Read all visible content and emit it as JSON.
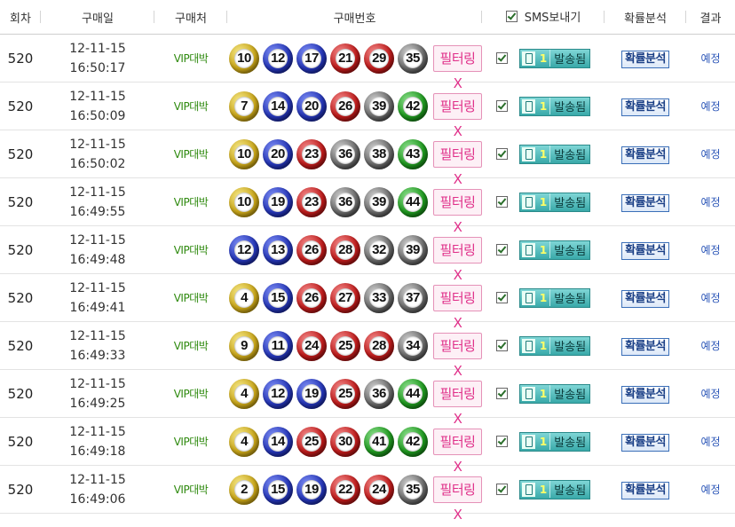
{
  "header": {
    "round": "회차",
    "date": "구매일",
    "store": "구매처",
    "numbers": "구매번호",
    "sms": "SMS보내기",
    "analysis": "확률분석",
    "result": "결과"
  },
  "labels": {
    "filter": "필터링X",
    "sms_count": "1",
    "sms_status": "발송됨",
    "analysis_btn": "확률분석"
  },
  "rows": [
    {
      "round": "520",
      "date": "12-11-15",
      "time": "16:50:17",
      "store": "VIP대박",
      "numbers": [
        {
          "v": "10",
          "c": "yellow"
        },
        {
          "v": "12",
          "c": "blue"
        },
        {
          "v": "17",
          "c": "blue"
        },
        {
          "v": "21",
          "c": "red"
        },
        {
          "v": "29",
          "c": "red"
        },
        {
          "v": "35",
          "c": "gray"
        }
      ],
      "result": "예정"
    },
    {
      "round": "520",
      "date": "12-11-15",
      "time": "16:50:09",
      "store": "VIP대박",
      "numbers": [
        {
          "v": "7",
          "c": "yellow"
        },
        {
          "v": "14",
          "c": "blue"
        },
        {
          "v": "20",
          "c": "blue"
        },
        {
          "v": "26",
          "c": "red"
        },
        {
          "v": "39",
          "c": "gray"
        },
        {
          "v": "42",
          "c": "green"
        }
      ],
      "result": "예정"
    },
    {
      "round": "520",
      "date": "12-11-15",
      "time": "16:50:02",
      "store": "VIP대박",
      "numbers": [
        {
          "v": "10",
          "c": "yellow"
        },
        {
          "v": "20",
          "c": "blue"
        },
        {
          "v": "23",
          "c": "red"
        },
        {
          "v": "36",
          "c": "gray"
        },
        {
          "v": "38",
          "c": "gray"
        },
        {
          "v": "43",
          "c": "green"
        }
      ],
      "result": "예정"
    },
    {
      "round": "520",
      "date": "12-11-15",
      "time": "16:49:55",
      "store": "VIP대박",
      "numbers": [
        {
          "v": "10",
          "c": "yellow"
        },
        {
          "v": "19",
          "c": "blue"
        },
        {
          "v": "23",
          "c": "red"
        },
        {
          "v": "36",
          "c": "gray"
        },
        {
          "v": "39",
          "c": "gray"
        },
        {
          "v": "44",
          "c": "green"
        }
      ],
      "result": "예정"
    },
    {
      "round": "520",
      "date": "12-11-15",
      "time": "16:49:48",
      "store": "VIP대박",
      "numbers": [
        {
          "v": "12",
          "c": "blue"
        },
        {
          "v": "13",
          "c": "blue"
        },
        {
          "v": "26",
          "c": "red"
        },
        {
          "v": "28",
          "c": "red"
        },
        {
          "v": "32",
          "c": "gray"
        },
        {
          "v": "39",
          "c": "gray"
        }
      ],
      "result": "예정"
    },
    {
      "round": "520",
      "date": "12-11-15",
      "time": "16:49:41",
      "store": "VIP대박",
      "numbers": [
        {
          "v": "4",
          "c": "yellow"
        },
        {
          "v": "15",
          "c": "blue"
        },
        {
          "v": "26",
          "c": "red"
        },
        {
          "v": "27",
          "c": "red"
        },
        {
          "v": "33",
          "c": "gray"
        },
        {
          "v": "37",
          "c": "gray"
        }
      ],
      "result": "예정"
    },
    {
      "round": "520",
      "date": "12-11-15",
      "time": "16:49:33",
      "store": "VIP대박",
      "numbers": [
        {
          "v": "9",
          "c": "yellow"
        },
        {
          "v": "11",
          "c": "blue"
        },
        {
          "v": "24",
          "c": "red"
        },
        {
          "v": "25",
          "c": "red"
        },
        {
          "v": "28",
          "c": "red"
        },
        {
          "v": "34",
          "c": "gray"
        }
      ],
      "result": "예정"
    },
    {
      "round": "520",
      "date": "12-11-15",
      "time": "16:49:25",
      "store": "VIP대박",
      "numbers": [
        {
          "v": "4",
          "c": "yellow"
        },
        {
          "v": "12",
          "c": "blue"
        },
        {
          "v": "19",
          "c": "blue"
        },
        {
          "v": "25",
          "c": "red"
        },
        {
          "v": "36",
          "c": "gray"
        },
        {
          "v": "44",
          "c": "green"
        }
      ],
      "result": "예정"
    },
    {
      "round": "520",
      "date": "12-11-15",
      "time": "16:49:18",
      "store": "VIP대박",
      "numbers": [
        {
          "v": "4",
          "c": "yellow"
        },
        {
          "v": "14",
          "c": "blue"
        },
        {
          "v": "25",
          "c": "red"
        },
        {
          "v": "30",
          "c": "red"
        },
        {
          "v": "41",
          "c": "green"
        },
        {
          "v": "42",
          "c": "green"
        }
      ],
      "result": "예정"
    },
    {
      "round": "520",
      "date": "12-11-15",
      "time": "16:49:06",
      "store": "VIP대박",
      "numbers": [
        {
          "v": "2",
          "c": "yellow"
        },
        {
          "v": "15",
          "c": "blue"
        },
        {
          "v": "19",
          "c": "blue"
        },
        {
          "v": "22",
          "c": "red"
        },
        {
          "v": "24",
          "c": "red"
        },
        {
          "v": "35",
          "c": "gray"
        }
      ],
      "result": "예정"
    }
  ]
}
